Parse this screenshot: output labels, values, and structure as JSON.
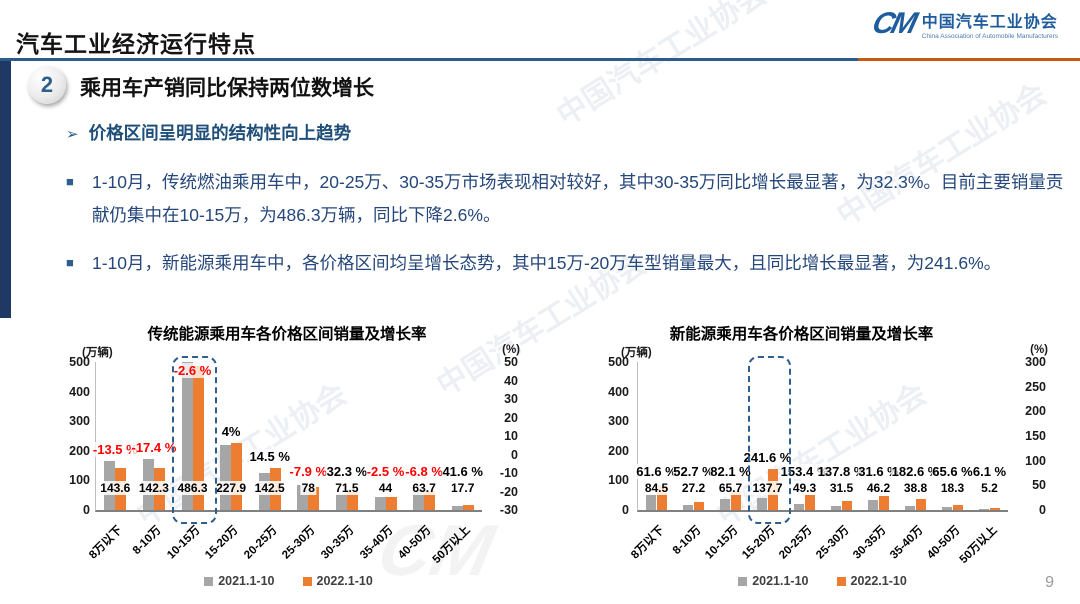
{
  "header": {
    "title": "汽车工业经济运行特点",
    "logo": {
      "monogram": "CM",
      "org_cn": "中国汽车工业协会",
      "org_en": "China Association of Automobile Manufacturers"
    }
  },
  "section": {
    "number": "2",
    "title": "乘用车产销同比保持两位数增长"
  },
  "subtitle_marker": "➢",
  "subtitle": "价格区间呈明显的结构性向上趋势",
  "bullet_marker": "■",
  "bullets": [
    "1-10月，传统燃油乘用车中，20-25万、30-35万市场表现相对较好，其中30-35万同比增长最显著，为32.3%。目前主要销量贡献仍集中在10-15万，为486.3万辆，同比下降2.6%。",
    "1-10月，新能源乘用车中，各价格区间均呈增长态势，其中15万-20万车型销量最大，且同比增长最显著，为241.6%。"
  ],
  "watermark": "中国汽车工业协会",
  "page_number": "9",
  "colors": {
    "bar_2021": "#A6A6A6",
    "bar_2022": "#ED7D31",
    "negative": "#FF0000",
    "positive": "#000000",
    "highlight": "#2E5E8E",
    "accent_blue": "#1F4E79",
    "divider_blue": "#2E5C8A",
    "divider_orange": "#C55A11"
  },
  "legend": [
    "2021.1-10",
    "2022.1-10"
  ],
  "chart_data": [
    {
      "type": "bar",
      "title": "传统能源乘用车各价格区间销量及增长率",
      "left_axis_unit": "(万辆)",
      "right_axis_unit": "(%)",
      "ylim": [
        0,
        500
      ],
      "left_ticks": [
        "500",
        "400",
        "300",
        "200",
        "100",
        "0"
      ],
      "right_ticks": [
        "50",
        "40",
        "30",
        "20",
        "10",
        "0",
        "-10",
        "-20",
        "-30"
      ],
      "categories": [
        "8万以下",
        "8-10万",
        "10-15万",
        "15-20万",
        "20-25万",
        "25-30万",
        "30-35万",
        "35-40万",
        "40-50万",
        "50万以上"
      ],
      "series": [
        {
          "name": "2021.1-10",
          "color": "#A6A6A6",
          "values": [
            166.0,
            172.3,
            499.3,
            219.1,
            124.5,
            84.7,
            54.0,
            45.1,
            68.3,
            12.5
          ]
        },
        {
          "name": "2022.1-10",
          "color": "#ED7D31",
          "values": [
            143.6,
            142.3,
            486.3,
            227.9,
            142.5,
            78,
            71.5,
            44,
            63.7,
            17.7
          ]
        }
      ],
      "value_labels": [
        "143.6",
        "142.3",
        "486.3",
        "227.9",
        "142.5",
        "78",
        "71.5",
        "44",
        "63.7",
        "17.7"
      ],
      "growth_labels": [
        "-13.5 %",
        "-17.4 %",
        "-2.6 %",
        "4%",
        "14.5 %",
        "-7.9 %",
        "32.3 %",
        "-2.5 %",
        "-6.8 %",
        "41.6 %"
      ],
      "highlight_index": 2,
      "legend_position": "bottom",
      "grid": false
    },
    {
      "type": "bar",
      "title": "新能源乘用车各价格区间销量及增长率",
      "left_axis_unit": "(万辆)",
      "right_axis_unit": "(%)",
      "ylim": [
        0,
        500
      ],
      "left_ticks": [
        "500",
        "400",
        "300",
        "200",
        "100",
        "0"
      ],
      "right_ticks": [
        "300",
        "250",
        "200",
        "150",
        "100",
        "50",
        "0"
      ],
      "categories": [
        "8万以下",
        "8-10万",
        "10-15万",
        "15-20万",
        "20-25万",
        "25-30万",
        "30-35万",
        "35-40万",
        "40-50万",
        "50万以上"
      ],
      "series": [
        {
          "name": "2021.1-10",
          "color": "#A6A6A6",
          "values": [
            52.3,
            17.8,
            36.1,
            40.3,
            19.5,
            13.2,
            35.1,
            13.7,
            11.1,
            4.9
          ]
        },
        {
          "name": "2022.1-10",
          "color": "#ED7D31",
          "values": [
            84.5,
            27.2,
            65.7,
            137.7,
            49.3,
            31.5,
            46.2,
            38.8,
            18.3,
            5.2
          ]
        }
      ],
      "value_labels": [
        "84.5",
        "27.2",
        "65.7",
        "137.7",
        "49.3",
        "31.5",
        "46.2",
        "38.8",
        "18.3",
        "5.2"
      ],
      "growth_labels": [
        "61.6 %",
        "52.7 %",
        "82.1 %",
        "241.6 %",
        "153.4 %",
        "137.8 %",
        "31.6 %",
        "182.6 %",
        "65.6 %",
        "6.1 %"
      ],
      "highlight_index": 3,
      "legend_position": "bottom",
      "grid": false
    }
  ]
}
